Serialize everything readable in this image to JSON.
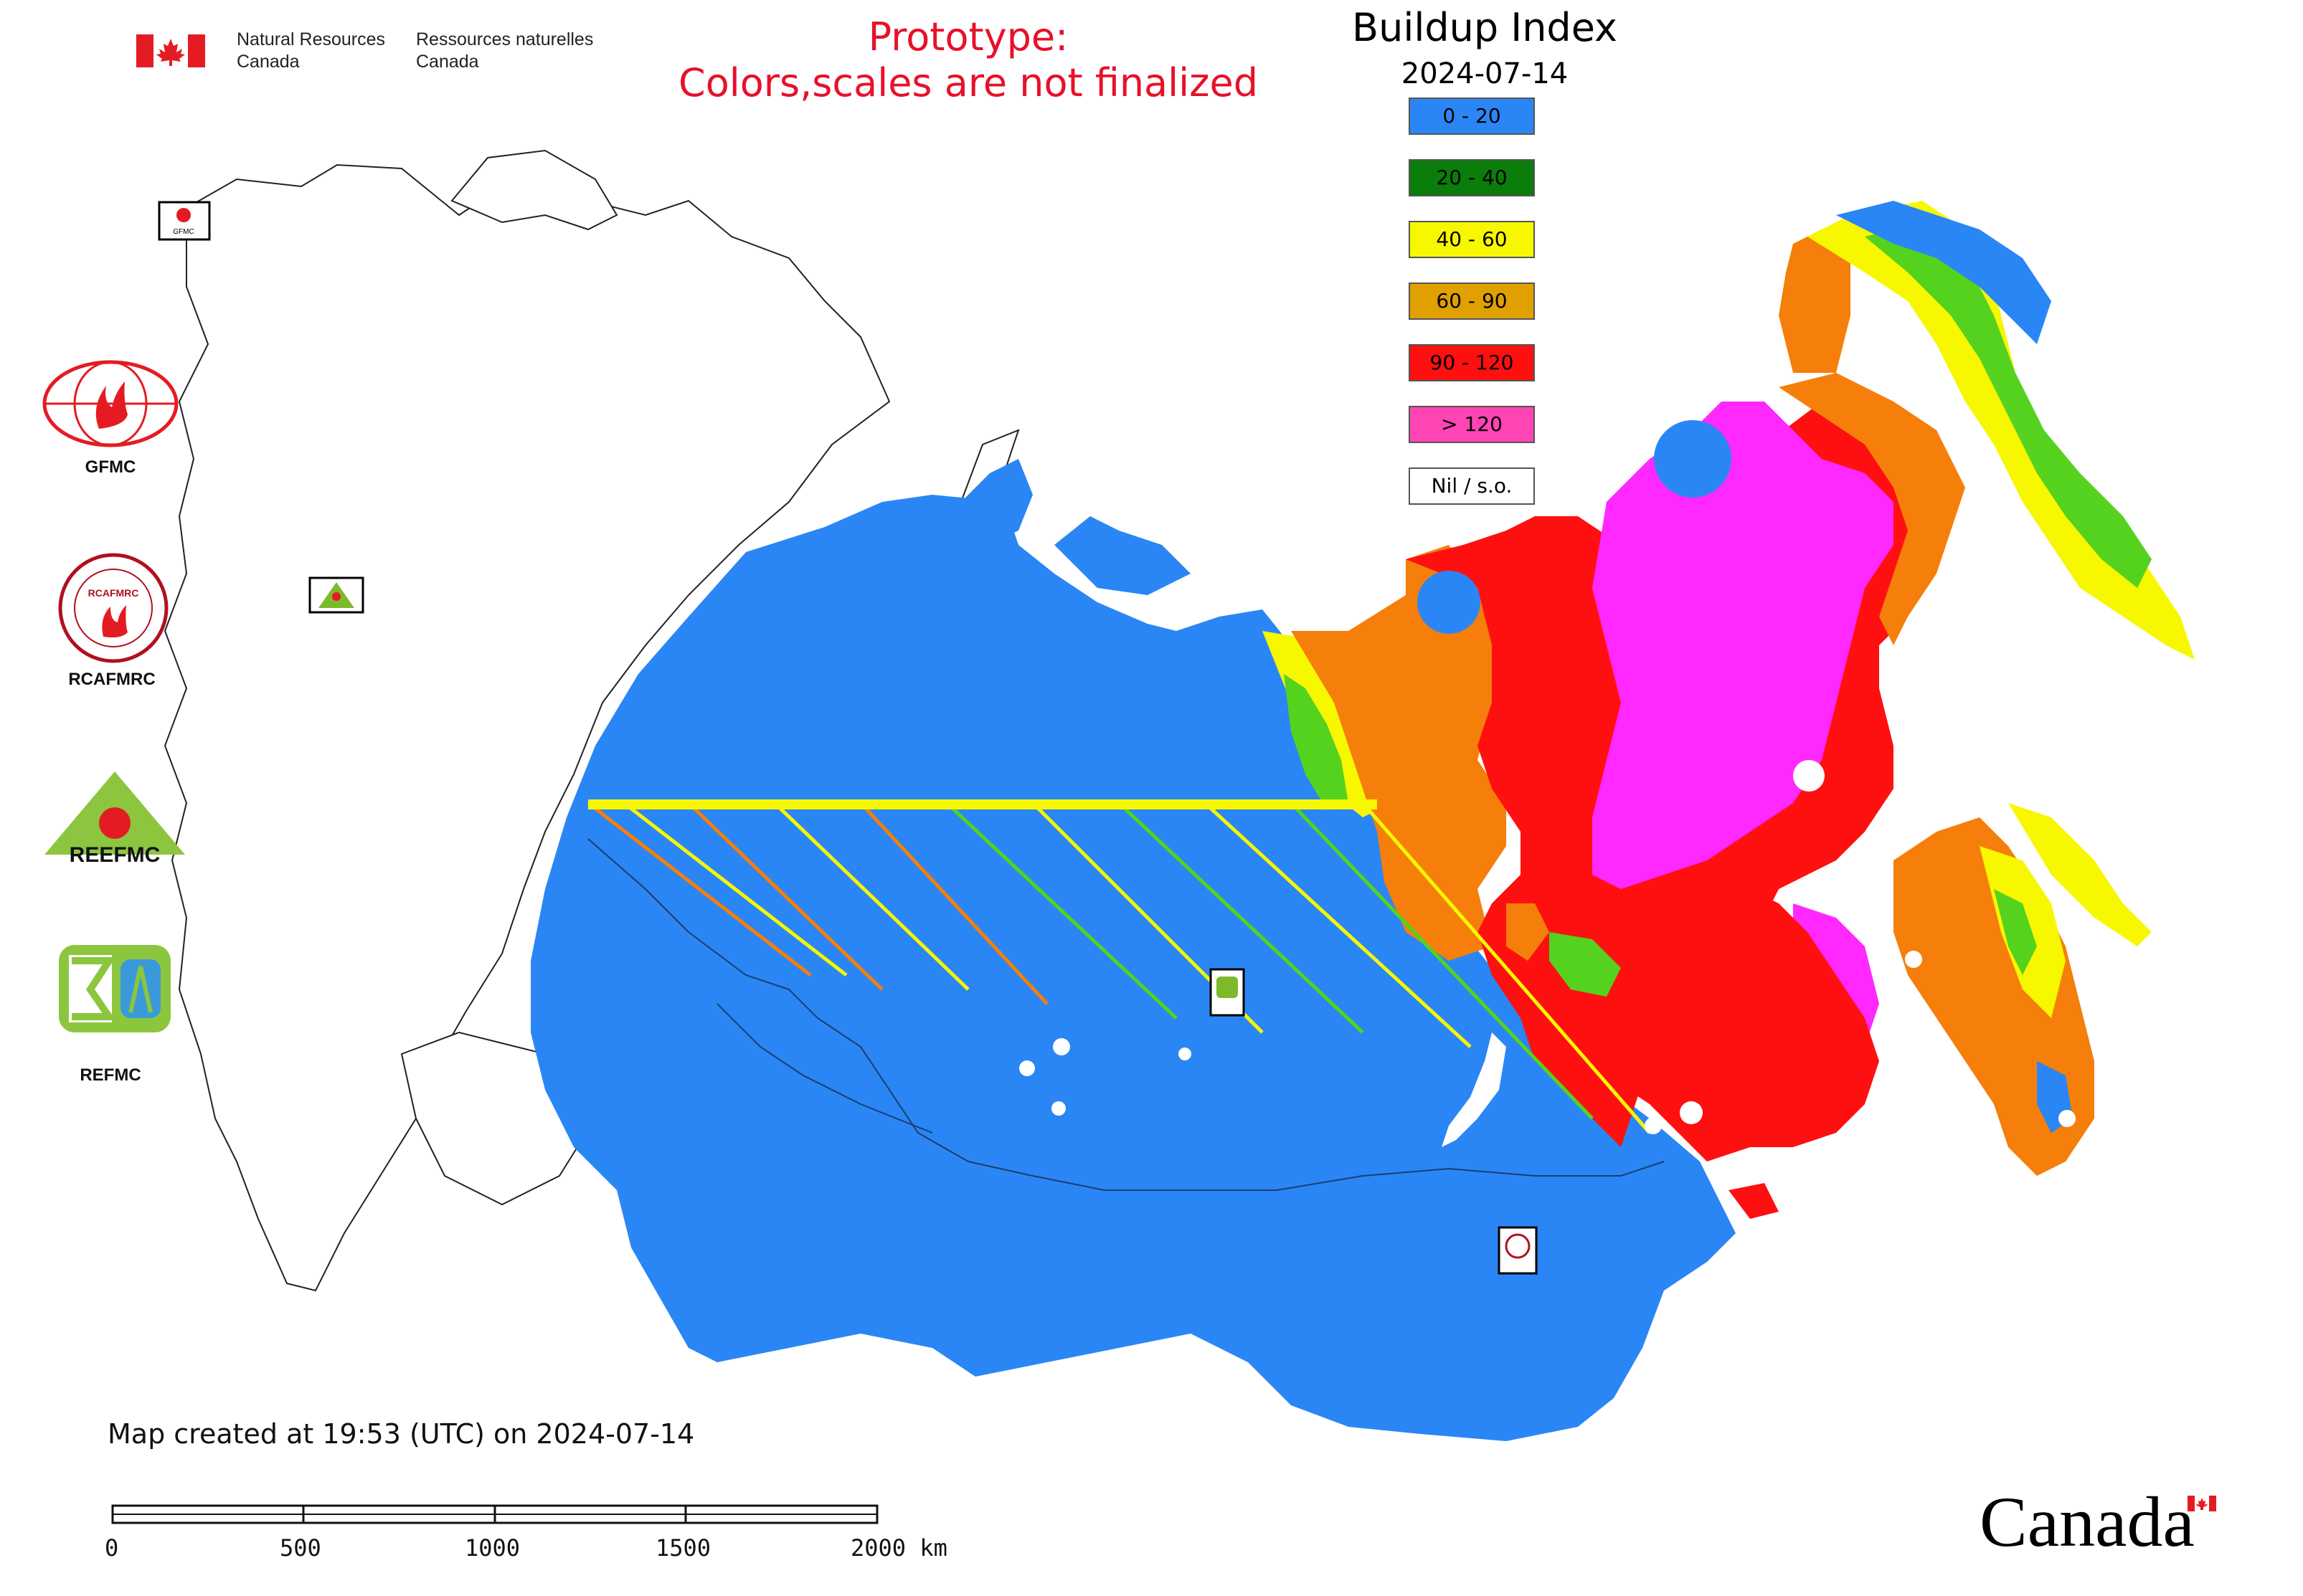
{
  "header": {
    "dept_en_line1": "Natural Resources",
    "dept_en_line2": "Canada",
    "dept_fr_line1": "Ressources naturelles",
    "dept_fr_line2": "Canada",
    "prototype_line1": "Prototype:",
    "prototype_line2": "Colors,scales are not finalized"
  },
  "map": {
    "title": "Buildup Index",
    "date": "2024-07-14",
    "legend": [
      {
        "label": "0 - 20",
        "color": "#2a86f5"
      },
      {
        "label": "20 - 40",
        "color": "#0a7d0a"
      },
      {
        "label": "40 - 60",
        "color": "#f7f700"
      },
      {
        "label": "60 - 90",
        "color": "#e0a000"
      },
      {
        "label": "90 - 120",
        "color": "#ff1010"
      },
      {
        "label": "> 120",
        "color": "#ff44b4"
      },
      {
        "label": "Nil / s.o.",
        "color": "#ffffff"
      }
    ],
    "region_labels": [
      "GFMC",
      "REEFMC",
      "REFMC",
      "RCAFMRC"
    ]
  },
  "logos": [
    {
      "name": "GFMC"
    },
    {
      "name": "RCAFMRC"
    },
    {
      "name": "REEFMC"
    },
    {
      "name": "REFMC"
    }
  ],
  "footer": {
    "created": "Map created at 19:53 (UTC) on 2024-07-14",
    "scale_ticks": [
      "0",
      "500",
      "1000",
      "1500",
      "2000 km"
    ],
    "wordmark": "Canada"
  },
  "colors": {
    "prototype_red": "#e8102a",
    "blue": "#2a86f5",
    "green": "#0a7d0a",
    "lightgreen": "#55d21e",
    "yellow": "#f7f700",
    "orange": "#f57f0a",
    "red": "#ff1010",
    "magenta": "#ff28ff"
  }
}
